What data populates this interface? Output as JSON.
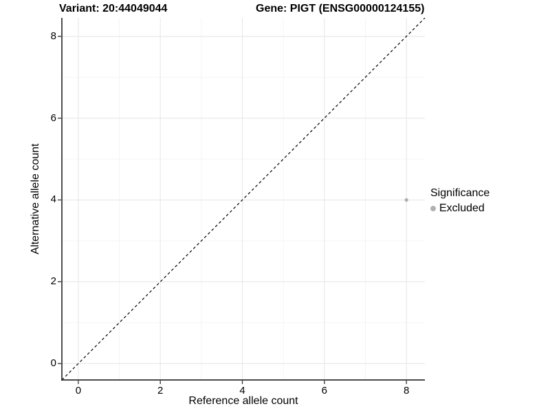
{
  "chart_data": {
    "type": "scatter",
    "titles": {
      "variant": "Variant: 20:44049044",
      "gene": "Gene: PIGT (ENSG00000124155)"
    },
    "xlabel": "Reference allele count",
    "ylabel": "Alternative allele count",
    "xlim": [
      -0.4,
      8.45
    ],
    "ylim": [
      -0.4,
      8.45
    ],
    "xticks": [
      0,
      2,
      4,
      6,
      8
    ],
    "yticks": [
      0,
      2,
      4,
      6,
      8
    ],
    "minor_xticks": [
      1,
      3,
      5,
      7
    ],
    "minor_yticks": [
      1,
      3,
      5,
      7
    ],
    "grid": "major and minor gridlines, white panel background",
    "points": [
      {
        "x": 8,
        "y": 4,
        "significance": "Excluded"
      }
    ],
    "reference_line": {
      "slope": 1,
      "intercept": 0,
      "style": "dashed",
      "color": "#000000"
    },
    "legend": {
      "title": "Significance",
      "position": "right",
      "entries": [
        {
          "label": "Excluded",
          "color": "#b0b0b0"
        }
      ]
    },
    "colors": {
      "point": "#aeaeae",
      "grid_major": "#e9e9e9",
      "grid_minor": "#f3f3f3",
      "axis_line": "#2f2f2f",
      "tick_mark": "#333333",
      "text": "#000000",
      "background": "#ffffff"
    }
  }
}
